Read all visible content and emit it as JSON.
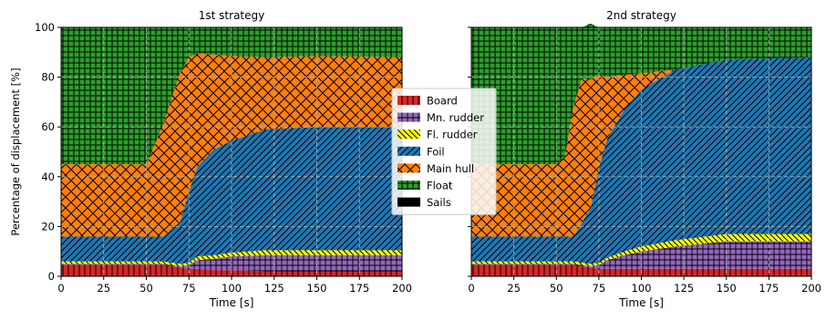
{
  "chart_data": [
    {
      "type": "area",
      "stacked": true,
      "title": "1st strategy",
      "xlabel": "Time [s]",
      "ylabel": "Percentage of displacement [%]",
      "xlim": [
        0,
        200
      ],
      "ylim": [
        0,
        100
      ],
      "xticks": [
        "0",
        "25",
        "50",
        "75",
        "100",
        "125",
        "150",
        "175",
        "200"
      ],
      "yticks": [
        "0",
        "20",
        "40",
        "60",
        "80",
        "100"
      ],
      "grid": true,
      "x": [
        0,
        50,
        60,
        65,
        70,
        75,
        80,
        90,
        100,
        120,
        150,
        200
      ],
      "series": [
        {
          "name": "Board",
          "values": [
            4.5,
            4.5,
            4.5,
            4,
            3.5,
            3,
            3,
            2.5,
            2.5,
            2,
            2,
            2
          ]
        },
        {
          "name": "Mn. rudder",
          "values": [
            0.5,
            0.5,
            0.5,
            0.5,
            0.5,
            1.5,
            3.5,
            4.5,
            5.5,
            6.5,
            6.5,
            6.5
          ]
        },
        {
          "name": "Fl. rudder",
          "values": [
            1,
            1,
            1,
            1,
            1,
            1,
            1.5,
            1.5,
            1.5,
            2,
            2,
            2
          ]
        },
        {
          "name": "Foil",
          "values": [
            10,
            10,
            10,
            13.5,
            17,
            28.5,
            36,
            42.5,
            45,
            48.5,
            49.5,
            49.5
          ]
        },
        {
          "name": "Main hull",
          "values": [
            29,
            29,
            45,
            53,
            60,
            54,
            45.5,
            38,
            34,
            29,
            28.5,
            28
          ]
        },
        {
          "name": "Float",
          "values": [
            55,
            55,
            39,
            28,
            18,
            12,
            10.5,
            11,
            11.5,
            12,
            11.5,
            12
          ]
        },
        {
          "name": "Sails",
          "values": [
            0,
            0,
            0,
            0,
            0,
            0,
            0,
            0,
            0,
            0,
            0,
            0
          ]
        }
      ],
      "legend": "right"
    },
    {
      "type": "area",
      "stacked": true,
      "title": "2nd strategy",
      "xlabel": "Time [s]",
      "ylabel": "",
      "xlim": [
        0,
        200
      ],
      "ylim": [
        0,
        100
      ],
      "xticks": [
        "0",
        "25",
        "50",
        "75",
        "100",
        "125",
        "150",
        "175",
        "200"
      ],
      "yticks": [],
      "grid": true,
      "x": [
        0,
        50,
        55,
        60,
        65,
        70,
        75,
        80,
        90,
        100,
        120,
        150,
        200
      ],
      "series": [
        {
          "name": "Board",
          "values": [
            4.5,
            4.5,
            4.5,
            4.5,
            4,
            3.5,
            3,
            3,
            3,
            3,
            3,
            3,
            3
          ]
        },
        {
          "name": "Mn. rudder",
          "values": [
            0.5,
            0.5,
            0.5,
            0.5,
            0.5,
            0.5,
            1.5,
            3.5,
            5.5,
            7,
            9,
            11,
            11
          ]
        },
        {
          "name": "Fl. rudder",
          "values": [
            1,
            1,
            1,
            1,
            1,
            1,
            1,
            1,
            1.5,
            2,
            2.5,
            3,
            3
          ]
        },
        {
          "name": "Foil",
          "values": [
            10,
            10,
            10,
            10,
            16,
            22,
            38,
            48,
            57,
            63,
            68.5,
            70,
            71
          ]
        },
        {
          "name": "Main hull",
          "values": [
            29,
            29,
            32,
            52,
            58,
            52,
            37.5,
            24.5,
            14,
            6.5,
            0,
            0,
            0
          ]
        },
        {
          "name": "Float",
          "values": [
            55,
            55,
            52,
            32,
            20.5,
            22.5,
            19,
            20,
            19,
            18.5,
            17,
            13,
            12
          ]
        },
        {
          "name": "Sails",
          "values": [
            0,
            0,
            0,
            0,
            0,
            0,
            0,
            0,
            0,
            0,
            0,
            0,
            0
          ]
        }
      ]
    }
  ],
  "series_colors": {
    "Board": "#d62728",
    "Mn. rudder": "#9467bd",
    "Fl. rudder": "#ffff00",
    "Foil": "#1f77b4",
    "Main hull": "#ff7f0e",
    "Float": "#2ca02c",
    "Sails": "#000000"
  },
  "series_hatches": {
    "Board": "vline",
    "Mn. rudder": "plus",
    "Fl. rudder": "backslash",
    "Foil": "slash",
    "Main hull": "cross",
    "Float": "grid",
    "Sails": "none"
  }
}
